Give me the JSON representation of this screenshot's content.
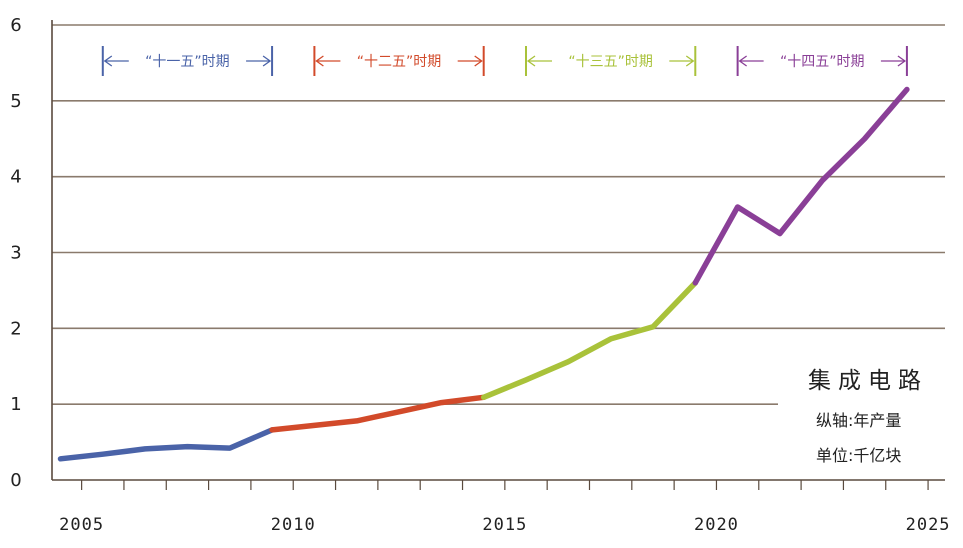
{
  "chart_data": {
    "type": "line",
    "title": "集成电路",
    "xlabel": "",
    "ylabel": "",
    "xlim": [
      2004.3,
      2025.4
    ],
    "ylim": [
      0,
      6
    ],
    "xticks": [
      2005,
      2010,
      2015,
      2020,
      2025
    ],
    "yticks": [
      0,
      1,
      2,
      3,
      4,
      5,
      6
    ],
    "grid": "horizontal",
    "legend": {
      "title": "集成电路",
      "lines": [
        "纵轴:年产量",
        "单位:千亿块"
      ]
    },
    "periods": [
      {
        "label": "“十一五”时期",
        "start": 2005.5,
        "end": 2009.5,
        "color": "#4a63a8"
      },
      {
        "label": "“十二五”时期",
        "start": 2010.5,
        "end": 2014.5,
        "color": "#d24a2a"
      },
      {
        "label": "“十三五”时期",
        "start": 2015.5,
        "end": 2019.5,
        "color": "#a9c23a"
      },
      {
        "label": "“十四五”时期",
        "start": 2020.5,
        "end": 2024.5,
        "color": "#8a3f97"
      }
    ],
    "series": [
      {
        "name": "十一五",
        "color": "#4a63a8",
        "points": [
          [
            2004.5,
            0.28
          ],
          [
            2005.5,
            0.34
          ],
          [
            2006.5,
            0.41
          ],
          [
            2007.5,
            0.44
          ],
          [
            2008.5,
            0.42
          ],
          [
            2009.5,
            0.66
          ]
        ]
      },
      {
        "name": "十二五",
        "color": "#d24a2a",
        "points": [
          [
            2009.5,
            0.66
          ],
          [
            2010.5,
            0.72
          ],
          [
            2011.5,
            0.78
          ],
          [
            2012.5,
            0.9
          ],
          [
            2013.5,
            1.02
          ],
          [
            2014.5,
            1.09
          ]
        ]
      },
      {
        "name": "十三五",
        "color": "#a9c23a",
        "points": [
          [
            2014.5,
            1.09
          ],
          [
            2015.5,
            1.32
          ],
          [
            2016.5,
            1.56
          ],
          [
            2017.5,
            1.86
          ],
          [
            2018.5,
            2.02
          ],
          [
            2019.5,
            2.6
          ]
        ]
      },
      {
        "name": "十四五",
        "color": "#8a3f97",
        "points": [
          [
            2019.5,
            2.6
          ],
          [
            2020.5,
            3.6
          ],
          [
            2021.5,
            3.25
          ],
          [
            2022.5,
            3.95
          ],
          [
            2023.5,
            4.5
          ],
          [
            2024.5,
            5.15
          ]
        ]
      }
    ]
  }
}
